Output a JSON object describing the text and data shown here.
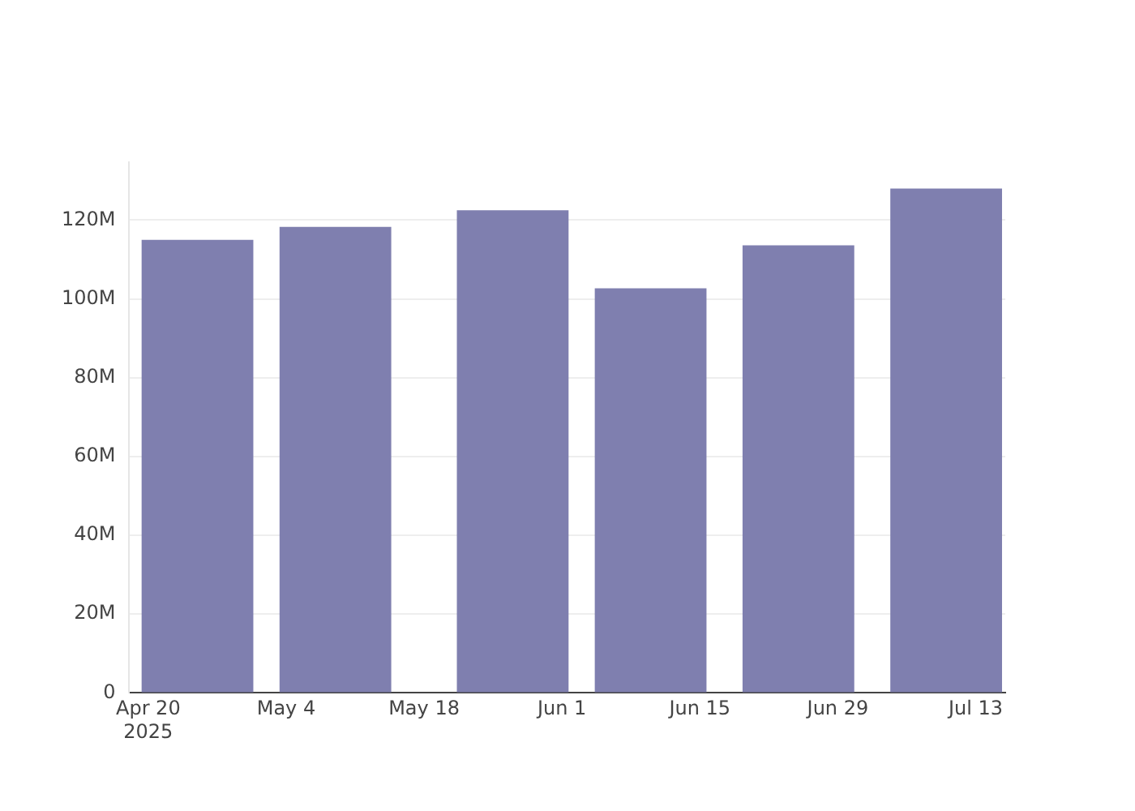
{
  "chart_data": {
    "type": "bar",
    "x": [
      "2025-04-25",
      "2025-05-09",
      "2025-05-27",
      "2025-06-10",
      "2025-06-25",
      "2025-07-10"
    ],
    "series": [
      {
        "color": "#7f7faf",
        "values": [
          115000000,
          118300000,
          122500000,
          102700000,
          113600000,
          128000000
        ]
      }
    ],
    "xlim": [
      "2025-04-18",
      "2025-07-16"
    ],
    "xticks": [
      {
        "value": "2025-04-20",
        "label": "Apr 20\n2025"
      },
      {
        "value": "2025-05-04",
        "label": "May 4"
      },
      {
        "value": "2025-05-18",
        "label": "May 18"
      },
      {
        "value": "2025-06-01",
        "label": "Jun 1"
      },
      {
        "value": "2025-06-15",
        "label": "Jun 15"
      },
      {
        "value": "2025-06-29",
        "label": "Jun 29"
      },
      {
        "value": "2025-07-13",
        "label": "Jul 13"
      }
    ],
    "ylim": [
      0,
      134700000
    ],
    "yticks": [
      {
        "value": 0,
        "label": "0"
      },
      {
        "value": 20000000,
        "label": "20M"
      },
      {
        "value": 40000000,
        "label": "40M"
      },
      {
        "value": 60000000,
        "label": "60M"
      },
      {
        "value": 80000000,
        "label": "80M"
      },
      {
        "value": 100000000,
        "label": "100M"
      },
      {
        "value": 120000000,
        "label": "120M"
      }
    ],
    "grid": "y",
    "legend": false
  }
}
